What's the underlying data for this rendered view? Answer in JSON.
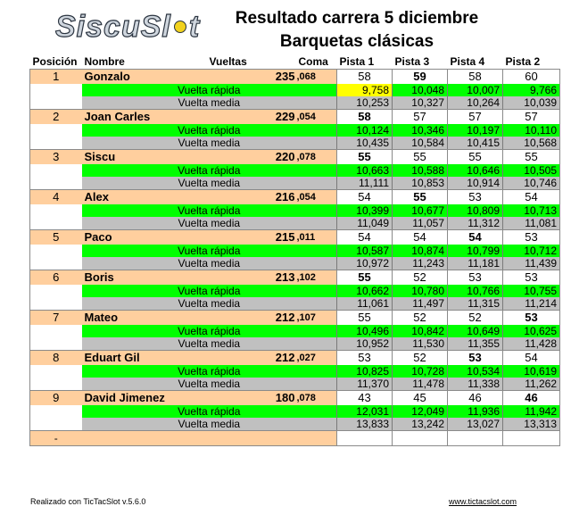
{
  "logo_text": "SiscuSlot",
  "title_line1": "Resultado carrera 5 diciembre",
  "title_line2": "Barquetas clásicas",
  "headers": {
    "posicion": "Posición",
    "nombre": "Nombre",
    "vueltas": "Vueltas",
    "coma": "Coma",
    "pistas": [
      "Pista 1",
      "Pista 3",
      "Pista 4",
      "Pista 2"
    ]
  },
  "labels": {
    "fast": "Vuelta rápida",
    "avg": "Vuelta media"
  },
  "racers": [
    {
      "pos": "1",
      "name": "Gonzalo",
      "laps": "235",
      "coma": ",068",
      "pistas": [
        "58",
        "59",
        "58",
        "60"
      ],
      "best": [
        false,
        true,
        false,
        false
      ],
      "fast": [
        "9,758",
        "10,048",
        "10,007",
        "9,766"
      ],
      "fast_hl": [
        true,
        false,
        false,
        false
      ],
      "avg": [
        "10,253",
        "10,327",
        "10,264",
        "10,039"
      ]
    },
    {
      "pos": "2",
      "name": "Joan Carles",
      "laps": "229",
      "coma": ",054",
      "pistas": [
        "58",
        "57",
        "57",
        "57"
      ],
      "best": [
        true,
        false,
        false,
        false
      ],
      "fast": [
        "10,124",
        "10,346",
        "10,197",
        "10,110"
      ],
      "fast_hl": [
        false,
        false,
        false,
        false
      ],
      "avg": [
        "10,435",
        "10,584",
        "10,415",
        "10,568"
      ]
    },
    {
      "pos": "3",
      "name": "Siscu",
      "laps": "220",
      "coma": ",078",
      "pistas": [
        "55",
        "55",
        "55",
        "55"
      ],
      "best": [
        true,
        false,
        false,
        false
      ],
      "fast": [
        "10,663",
        "10,588",
        "10,646",
        "10,505"
      ],
      "fast_hl": [
        false,
        false,
        false,
        false
      ],
      "avg": [
        "11,111",
        "10,853",
        "10,914",
        "10,746"
      ]
    },
    {
      "pos": "4",
      "name": "Alex",
      "laps": "216",
      "coma": ",054",
      "pistas": [
        "54",
        "55",
        "53",
        "54"
      ],
      "best": [
        false,
        true,
        false,
        false
      ],
      "fast": [
        "10,399",
        "10,677",
        "10,809",
        "10,713"
      ],
      "fast_hl": [
        false,
        false,
        false,
        false
      ],
      "avg": [
        "11,049",
        "11,057",
        "11,312",
        "11,081"
      ]
    },
    {
      "pos": "5",
      "name": "Paco",
      "laps": "215",
      "coma": ",011",
      "pistas": [
        "54",
        "54",
        "54",
        "53"
      ],
      "best": [
        false,
        false,
        true,
        false
      ],
      "fast": [
        "10,587",
        "10,874",
        "10,799",
        "10,712"
      ],
      "fast_hl": [
        false,
        false,
        false,
        false
      ],
      "avg": [
        "10,972",
        "11,243",
        "11,181",
        "11,439"
      ]
    },
    {
      "pos": "6",
      "name": "Boris",
      "laps": "213",
      "coma": ",102",
      "pistas": [
        "55",
        "52",
        "53",
        "53"
      ],
      "best": [
        true,
        false,
        false,
        false
      ],
      "fast": [
        "10,662",
        "10,780",
        "10,766",
        "10,755"
      ],
      "fast_hl": [
        false,
        false,
        false,
        false
      ],
      "avg": [
        "11,061",
        "11,497",
        "11,315",
        "11,214"
      ]
    },
    {
      "pos": "7",
      "name": "Mateo",
      "laps": "212",
      "coma": ",107",
      "pistas": [
        "55",
        "52",
        "52",
        "53"
      ],
      "best": [
        false,
        false,
        false,
        true
      ],
      "fast": [
        "10,496",
        "10,842",
        "10,649",
        "10,625"
      ],
      "fast_hl": [
        false,
        false,
        false,
        false
      ],
      "avg": [
        "10,952",
        "11,530",
        "11,355",
        "11,428"
      ]
    },
    {
      "pos": "8",
      "name": "Eduart Gil",
      "laps": "212",
      "coma": ",027",
      "pistas": [
        "53",
        "52",
        "53",
        "54"
      ],
      "best": [
        false,
        false,
        true,
        false
      ],
      "fast": [
        "10,825",
        "10,728",
        "10,534",
        "10,619"
      ],
      "fast_hl": [
        false,
        false,
        false,
        false
      ],
      "avg": [
        "11,370",
        "11,478",
        "11,338",
        "11,262"
      ]
    },
    {
      "pos": "9",
      "name": "David Jimenez",
      "laps": "180",
      "coma": ",078",
      "pistas": [
        "43",
        "45",
        "46",
        "46"
      ],
      "best": [
        false,
        false,
        false,
        true
      ],
      "fast": [
        "12,031",
        "12,049",
        "11,936",
        "11,942"
      ],
      "fast_hl": [
        false,
        false,
        false,
        false
      ],
      "avg": [
        "13,833",
        "13,242",
        "13,027",
        "13,313"
      ]
    }
  ],
  "empty_row_pos": "-",
  "footer_left": "Realizado con TicTacSlot v.5.6.0",
  "footer_right": "www.tictacslot.com"
}
